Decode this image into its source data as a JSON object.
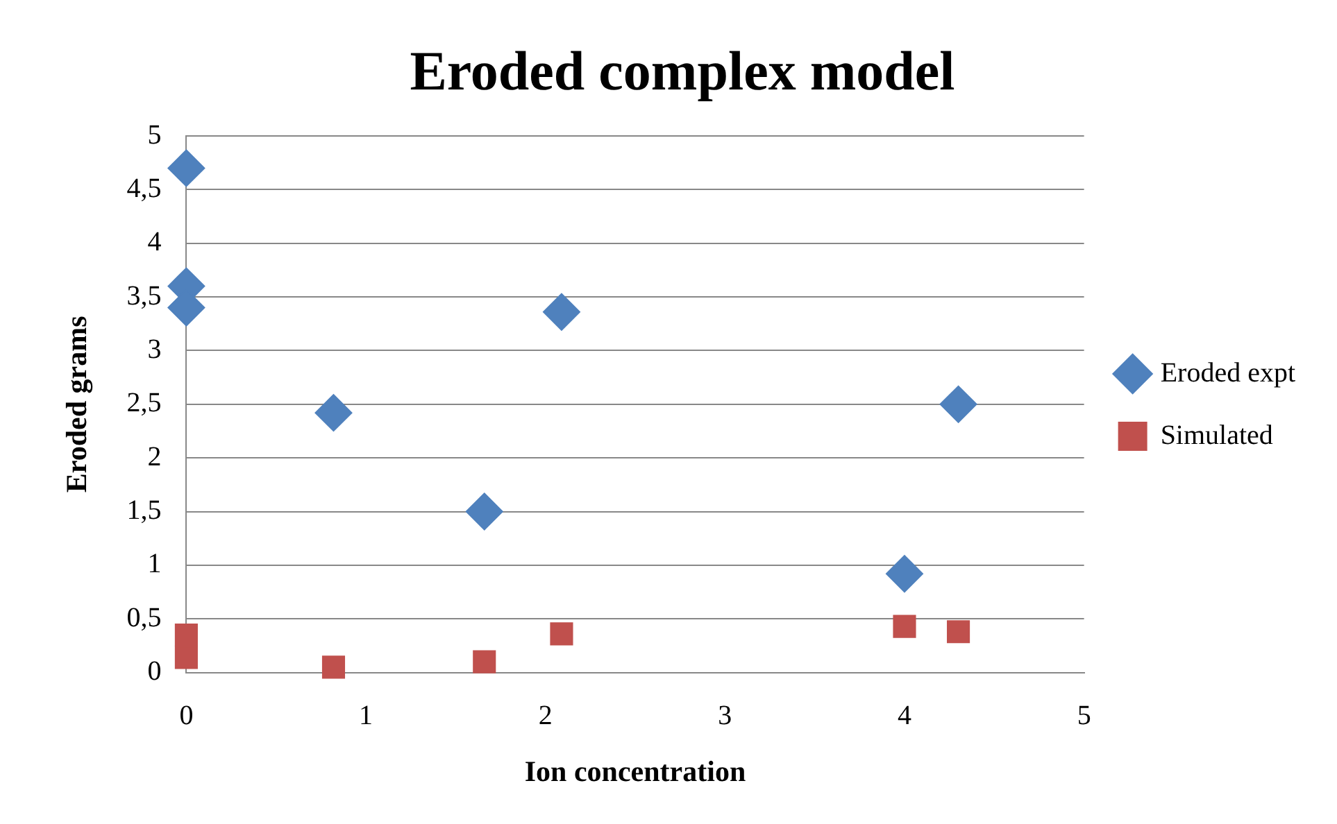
{
  "chart_data": {
    "type": "scatter",
    "title": "Eroded complex model",
    "xlabel": "Ion concentration",
    "ylabel": "Eroded grams",
    "series": [
      {
        "name": "Eroded expt",
        "color": "#4f81bd",
        "marker": "diamond",
        "x": [
          0,
          0,
          0,
          0.82,
          1.66,
          2.09,
          4.0,
          4.3
        ],
        "values": [
          4.7,
          3.6,
          3.4,
          2.42,
          1.5,
          3.36,
          0.92,
          2.5
        ]
      },
      {
        "name": "Simulated",
        "color": "#c0504d",
        "marker": "square",
        "x": [
          0,
          0,
          0.82,
          1.66,
          2.09,
          4.0,
          4.3
        ],
        "values": [
          0.35,
          0.14,
          0.05,
          0.1,
          0.36,
          0.43,
          0.38
        ]
      }
    ],
    "xlim": [
      0,
      5
    ],
    "xticks": [
      0,
      1,
      2,
      3,
      4,
      5
    ],
    "ylim": [
      0,
      5
    ],
    "yticks": [
      0,
      {
        "value": 0.5,
        "label": "0,5"
      },
      1,
      {
        "value": 1.5,
        "label": "1,5"
      },
      2,
      {
        "value": 2.5,
        "label": "2,5"
      },
      3,
      {
        "value": 3.5,
        "label": "3,5"
      },
      4,
      {
        "value": 4.5,
        "label": "4,5"
      },
      5
    ],
    "grid": "y",
    "legend": "right"
  }
}
